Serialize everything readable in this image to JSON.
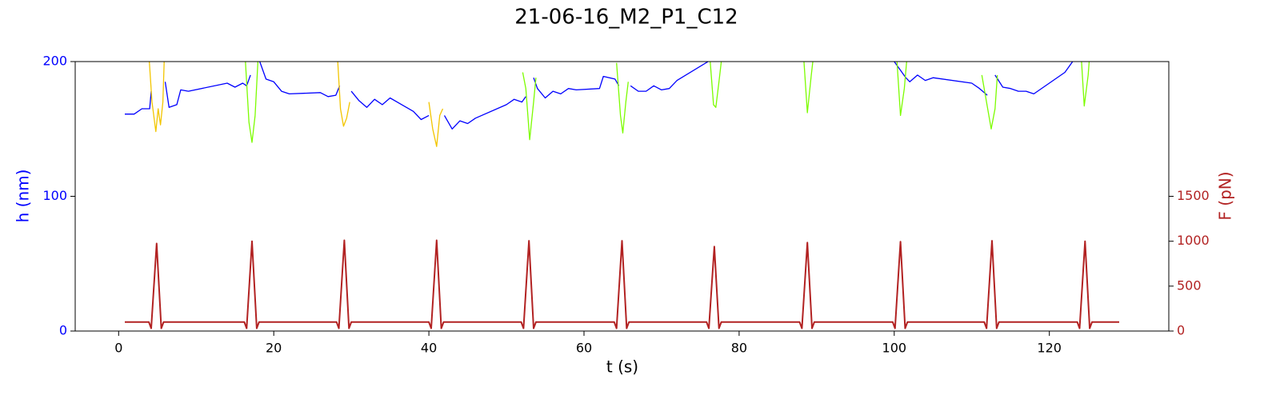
{
  "chart_data": {
    "type": "line",
    "title": "21-06-16_M2_P1_C12",
    "xlabel": "t (s)",
    "ylabel": "h (nm)",
    "y2label": "F (pN)",
    "ylabel_color": "#0000ff",
    "y2label_color": "#b22222",
    "xlim": [
      -5.6,
      135.4
    ],
    "xticks": [
      0,
      20,
      40,
      60,
      80,
      100,
      120
    ],
    "ylim": [
      0,
      200
    ],
    "yticks": [
      0,
      100,
      200
    ],
    "y2lim": [
      0,
      3000
    ],
    "y2ticks": [
      0,
      500,
      1000,
      1500
    ],
    "grid": false,
    "series": [
      {
        "name": "h",
        "color": "#0000ff",
        "axis": "y",
        "x": [
          0.8,
          2,
          3,
          4,
          4.2,
          null,
          6,
          6.5,
          7.5,
          8,
          9,
          14,
          15,
          16,
          16.5,
          17,
          null,
          18.2,
          19,
          20,
          21,
          22,
          26,
          27,
          28,
          28.5,
          null,
          30,
          31,
          32,
          33,
          34,
          35,
          38,
          39,
          40,
          null,
          42,
          43,
          44,
          45,
          46,
          50,
          51,
          52,
          52.5,
          null,
          53.5,
          54,
          55,
          56,
          57,
          58,
          59,
          62,
          62.5,
          64,
          64.5,
          null,
          66,
          67,
          68,
          69,
          70,
          71,
          72,
          76,
          78,
          90,
          98,
          100,
          101.5,
          102,
          103,
          104,
          105,
          110,
          111,
          112,
          null,
          113,
          114,
          115,
          116,
          117,
          118,
          122,
          123,
          124
        ],
        "values": [
          161,
          161,
          165,
          165,
          178,
          null,
          185,
          166,
          168,
          179,
          178,
          184,
          181,
          184,
          182,
          190,
          null,
          200,
          187,
          185,
          178,
          176,
          177,
          174,
          175,
          182,
          null,
          178,
          171,
          166,
          172,
          168,
          173,
          163,
          157,
          160,
          null,
          160,
          150,
          156,
          154,
          158,
          168,
          172,
          170,
          174,
          null,
          188,
          180,
          173,
          178,
          176,
          180,
          179,
          180,
          189,
          187,
          182,
          null,
          182,
          178,
          178,
          182,
          179,
          180,
          186,
          200,
          205,
          210,
          205,
          200,
          188,
          185,
          190,
          186,
          188,
          184,
          180,
          175,
          null,
          190,
          181,
          180,
          178,
          178,
          176,
          192,
          200,
          205
        ]
      },
      {
        "name": "h (green)",
        "color": "#7cfc00",
        "axis": "y",
        "x": [
          16.3,
          16.8,
          17.2,
          17.6,
          18,
          null,
          52.1,
          52.5,
          53,
          53.5,
          53.8,
          null,
          64.2,
          64.7,
          65,
          65.4,
          65.7,
          null,
          76.2,
          76.7,
          77,
          77.4,
          77.8,
          null,
          88.3,
          88.8,
          89.3,
          89.6,
          null,
          100.3,
          100.8,
          101.3,
          101.6,
          null,
          111.3,
          112.5,
          113,
          113.3,
          null,
          124.1,
          124.5,
          125,
          125.2
        ],
        "values": [
          205,
          155,
          140,
          160,
          205,
          null,
          192,
          180,
          142,
          170,
          188,
          null,
          199,
          160,
          147,
          170,
          185,
          null,
          205,
          168,
          166,
          185,
          205,
          null,
          205,
          162,
          190,
          205,
          null,
          205,
          160,
          180,
          200,
          null,
          190,
          150,
          165,
          190,
          null,
          205,
          167,
          190,
          205
        ]
      },
      {
        "name": "h (yellow)",
        "color": "#f2c500",
        "axis": "y",
        "x": [
          3.9,
          4.3,
          4.8,
          5.1,
          5.4,
          5.7,
          5.9,
          null,
          28.2,
          28.6,
          29,
          29.4,
          29.8,
          null,
          40,
          40.5,
          41,
          41.4,
          41.8
        ],
        "values": [
          205,
          170,
          148,
          165,
          153,
          170,
          205,
          null,
          205,
          165,
          152,
          158,
          170,
          null,
          170,
          150,
          137,
          160,
          165
        ]
      },
      {
        "name": "F",
        "color": "#b22222",
        "axis": "y2",
        "x": [
          0.8,
          3.9,
          4.2,
          4.9,
          5.5,
          5.8,
          16.2,
          16.5,
          17.2,
          17.8,
          18.1,
          28.1,
          28.4,
          29.1,
          29.7,
          30,
          40,
          40.3,
          41,
          41.6,
          41.9,
          51.9,
          52.2,
          52.9,
          53.5,
          53.8,
          63.9,
          64.2,
          64.9,
          65.5,
          65.8,
          75.8,
          76.1,
          76.8,
          77.4,
          77.7,
          87.8,
          88.1,
          88.8,
          89.4,
          89.7,
          99.8,
          100.1,
          100.8,
          101.4,
          101.7,
          111.6,
          111.9,
          112.6,
          113.2,
          113.5,
          123.6,
          123.9,
          124.6,
          125.2,
          125.5,
          129
        ],
        "values": [
          100,
          100,
          30,
          975,
          30,
          100,
          100,
          30,
          1000,
          30,
          100,
          100,
          30,
          1010,
          30,
          100,
          100,
          30,
          1010,
          30,
          100,
          100,
          30,
          1005,
          30,
          100,
          100,
          30,
          1005,
          30,
          100,
          100,
          30,
          940,
          30,
          100,
          100,
          30,
          985,
          30,
          100,
          100,
          30,
          995,
          30,
          100,
          100,
          30,
          1005,
          30,
          100,
          100,
          30,
          1000,
          30,
          100,
          100
        ]
      }
    ]
  }
}
